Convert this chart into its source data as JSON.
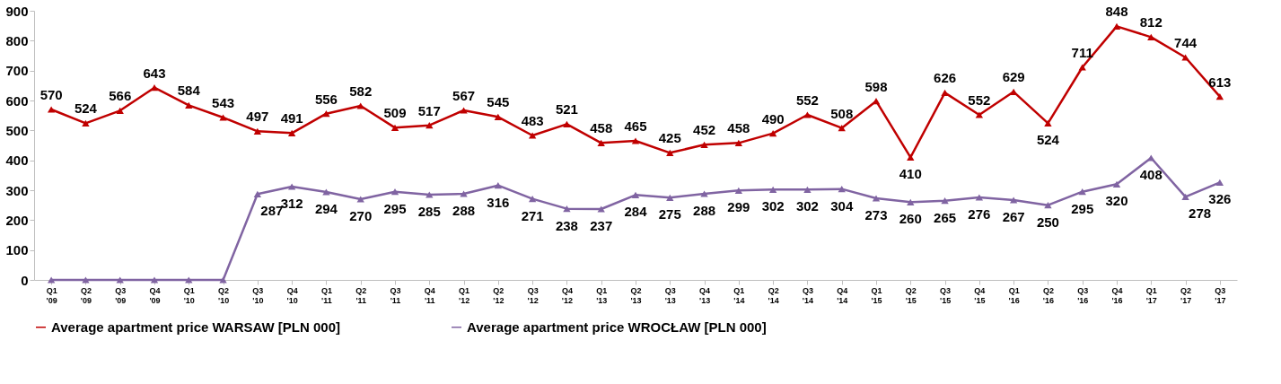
{
  "chart_data": {
    "type": "line",
    "categories": [
      "Q1 '09",
      "Q2 '09",
      "Q3 '09",
      "Q4 '09",
      "Q1 '10",
      "Q2 '10",
      "Q3 '10",
      "Q4 '10",
      "Q1 '11",
      "Q2 '11",
      "Q3 '11",
      "Q4 '11",
      "Q1 '12",
      "Q2 '12",
      "Q3 '12",
      "Q4 '12",
      "Q1 '13",
      "Q2 '13",
      "Q3 '13",
      "Q4 '13",
      "Q1 '14",
      "Q2 '14",
      "Q3 '14",
      "Q4 '14",
      "Q1 '15",
      "Q2 '15",
      "Q3 '15",
      "Q4 '15",
      "Q1 '16",
      "Q2 '16",
      "Q3 '16",
      "Q4 '16",
      "Q1 '17",
      "Q2 '17",
      "Q3 '17"
    ],
    "series": [
      {
        "name": "Average apartment price WARSAW [PLN 000]",
        "color": "#c00000",
        "values": [
          570,
          524,
          566,
          643,
          584,
          543,
          497,
          491,
          556,
          582,
          509,
          517,
          567,
          545,
          483,
          521,
          458,
          465,
          425,
          452,
          458,
          490,
          552,
          508,
          598,
          410,
          626,
          552,
          629,
          524,
          711,
          848,
          812,
          744,
          613
        ],
        "value_labels": [
          "570",
          "524",
          "566",
          "643",
          "584",
          "543",
          "497",
          "491",
          "556",
          "582",
          "509",
          "517",
          "567",
          "545",
          "483",
          "521",
          "458",
          "465",
          "425",
          "452",
          "458",
          "490",
          "552",
          "508",
          "598",
          "410",
          "626",
          "552",
          "629",
          "524",
          "711",
          "848",
          "812",
          "744",
          "613"
        ]
      },
      {
        "name": "Average apartment price WROCŁAW [PLN 000]",
        "color": "#8064a2",
        "values": [
          0,
          0,
          0,
          0,
          0,
          0,
          287,
          312,
          294,
          270,
          295,
          285,
          288,
          316,
          271,
          238,
          237,
          284,
          275,
          288,
          299,
          302,
          302,
          304,
          273,
          260,
          265,
          276,
          267,
          250,
          295,
          320,
          408,
          278,
          326
        ],
        "value_labels": [
          null,
          null,
          null,
          null,
          null,
          null,
          "287",
          "312",
          "294",
          "270",
          "295",
          "285",
          "288",
          "316",
          "271",
          "238",
          "237",
          "284",
          "275",
          "288",
          "299",
          "302",
          "302",
          "304",
          "273",
          "260",
          "265",
          "276",
          "267",
          "250",
          "295",
          "320",
          "408",
          "278",
          "326"
        ]
      }
    ],
    "ylim": [
      0,
      900
    ],
    "yticks": [
      0,
      100,
      200,
      300,
      400,
      500,
      600,
      700,
      800,
      900
    ],
    "grid": false,
    "legend": "bottom",
    "marker": "triangle",
    "line_style": "solid"
  }
}
